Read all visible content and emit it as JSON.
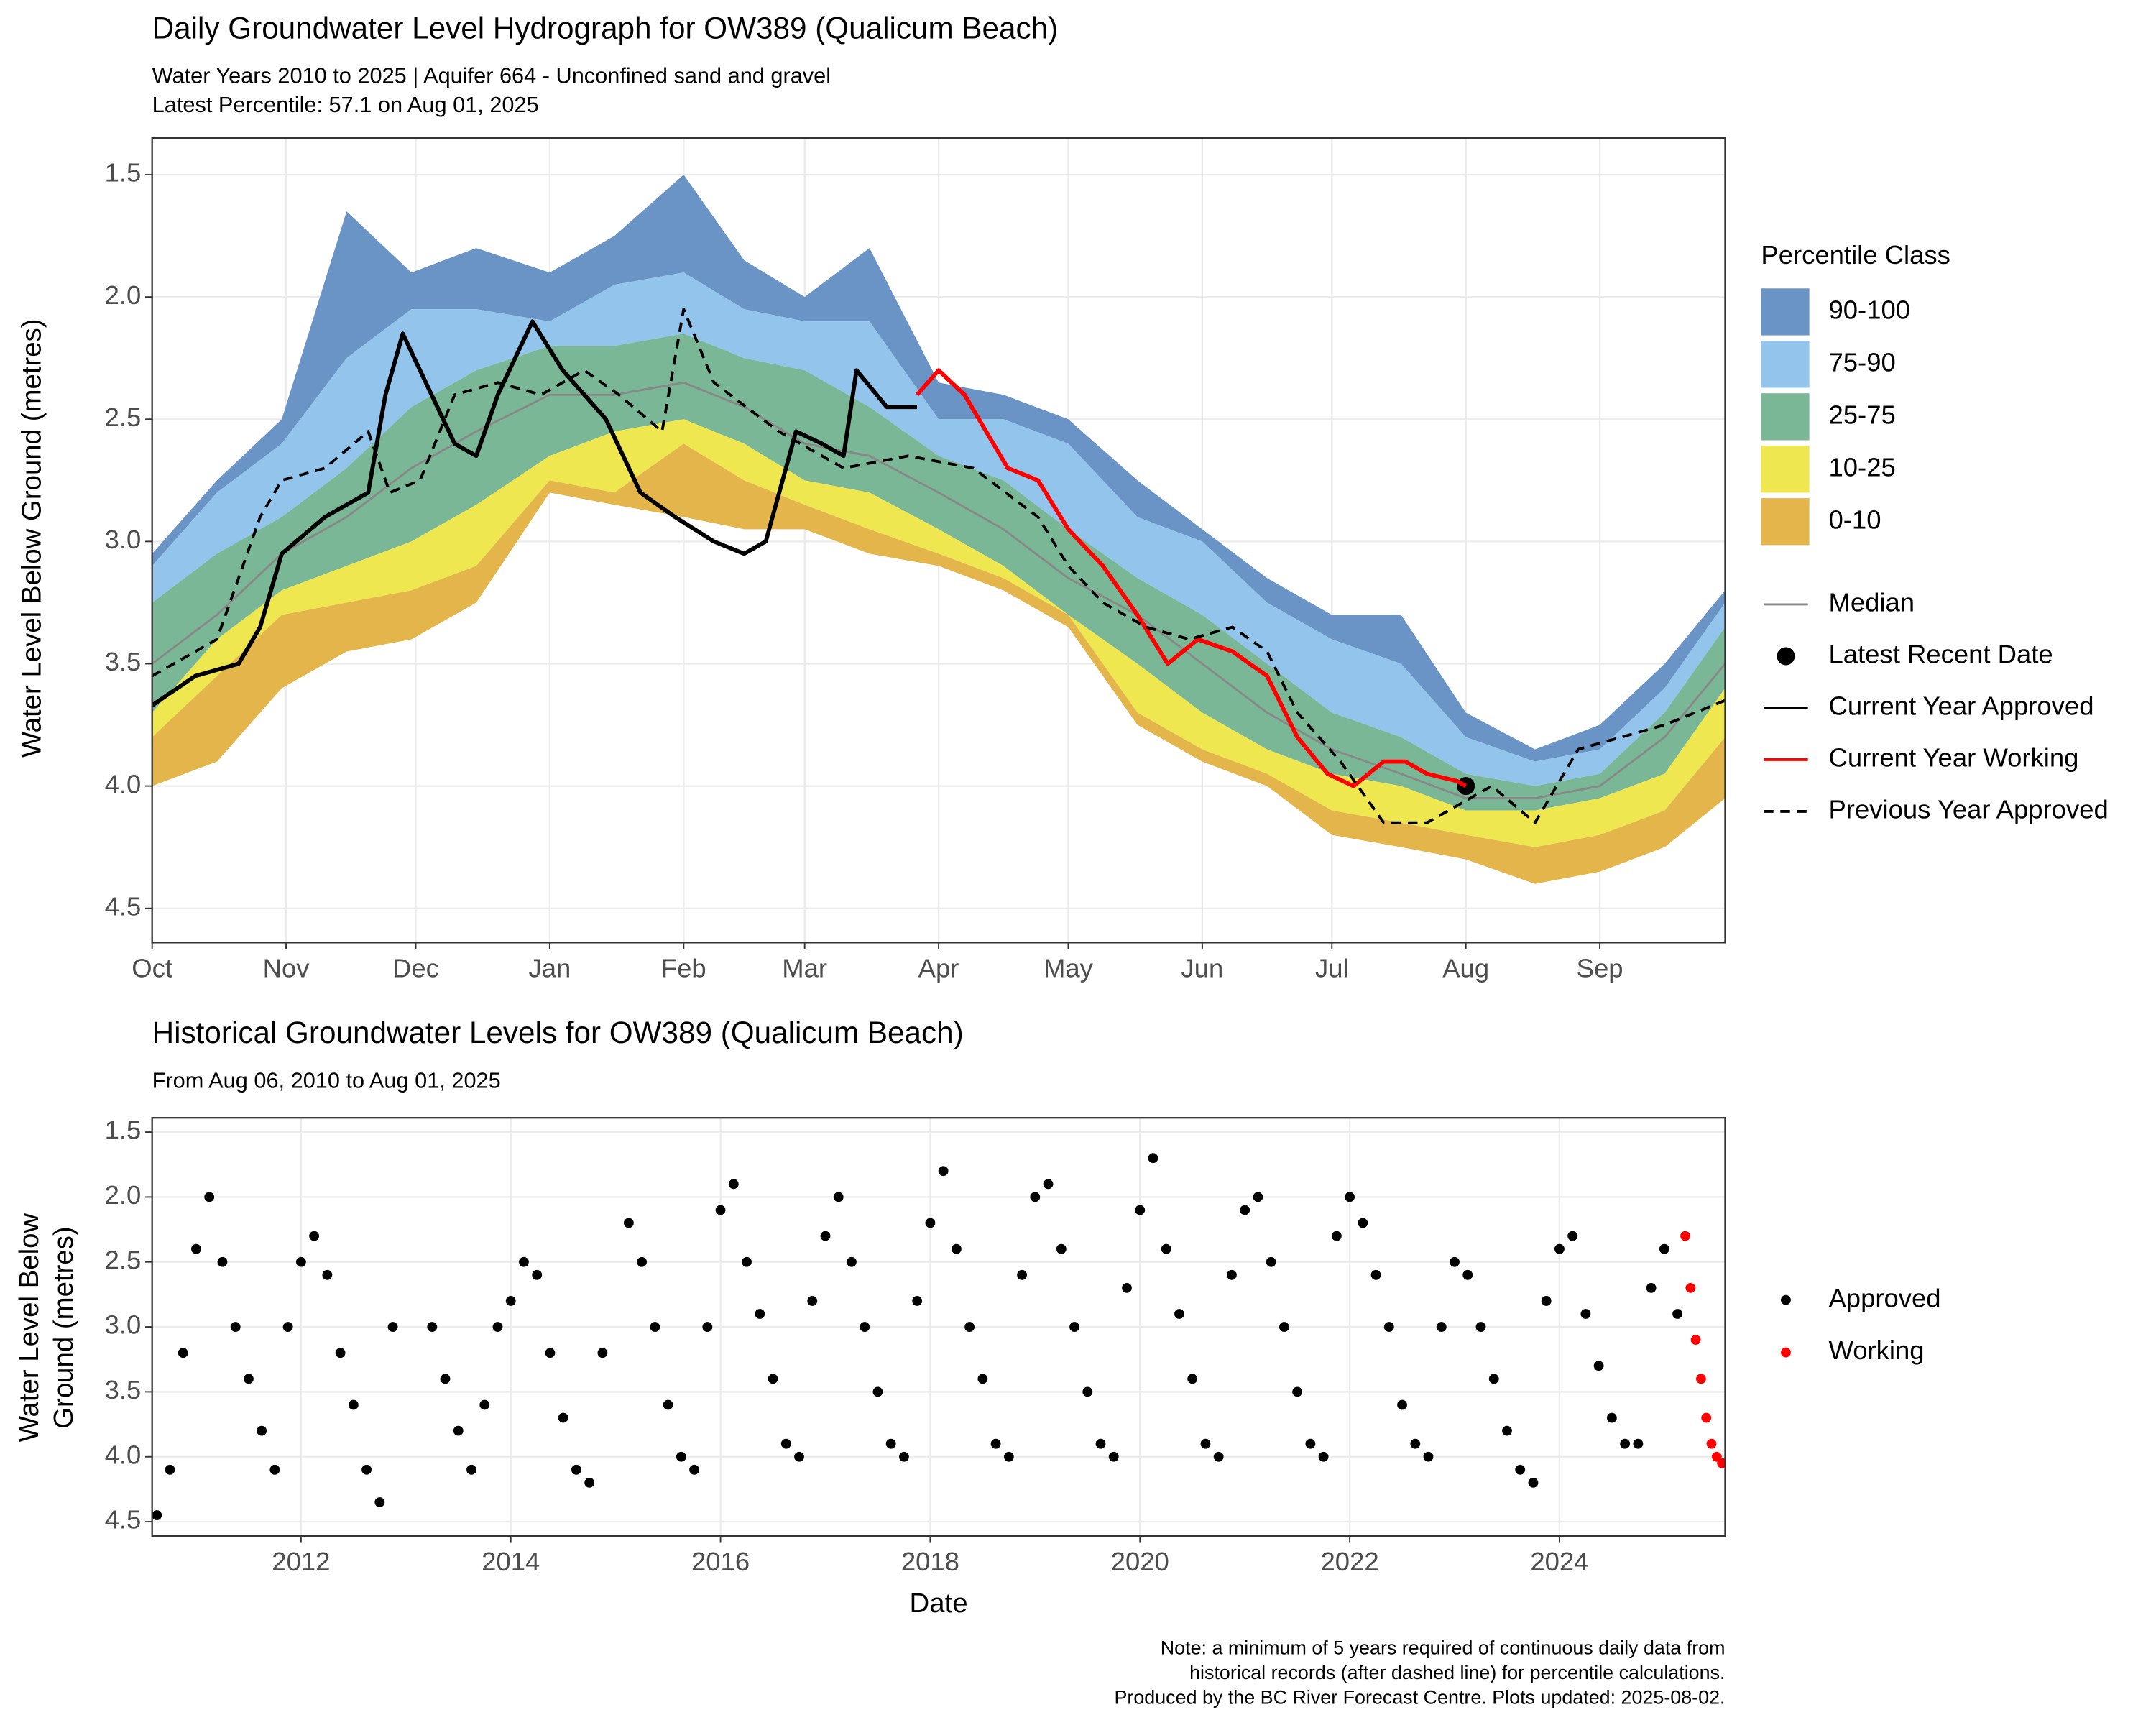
{
  "chart_data": [
    {
      "type": "area",
      "title": "Daily Groundwater Level Hydrograph for OW389 (Qualicum Beach)",
      "subtitle": [
        "Water Years 2010 to 2025 | Aquifer 664 - Unconfined sand and gravel",
        "Latest Percentile: 57.1 on Aug 01, 2025"
      ],
      "ylabel": "Water Level Below Ground (metres)",
      "legend_title": "Percentile Class",
      "legend": "right",
      "grid": true,
      "xlim": [
        0,
        364
      ],
      "xticks": [
        {
          "value": 0,
          "label": "Oct"
        },
        {
          "value": 31,
          "label": "Nov"
        },
        {
          "value": 61,
          "label": "Dec"
        },
        {
          "value": 92,
          "label": "Jan"
        },
        {
          "value": 123,
          "label": "Feb"
        },
        {
          "value": 151,
          "label": "Mar"
        },
        {
          "value": 182,
          "label": "Apr"
        },
        {
          "value": 212,
          "label": "May"
        },
        {
          "value": 243,
          "label": "Jun"
        },
        {
          "value": 273,
          "label": "Jul"
        },
        {
          "value": 304,
          "label": "Aug"
        },
        {
          "value": 335,
          "label": "Sep"
        }
      ],
      "ylim": [
        4.64,
        1.35
      ],
      "yticks": [
        1.5,
        {
          "value": 2,
          "label": "2.0"
        },
        2.5,
        {
          "value": 3,
          "label": "3.0"
        },
        3.5,
        {
          "value": 4,
          "label": "4.0"
        },
        4.5
      ],
      "x": [
        0,
        15,
        30,
        45,
        60,
        75,
        92,
        107,
        123,
        137,
        151,
        166,
        182,
        197,
        212,
        228,
        243,
        258,
        273,
        289,
        304,
        320,
        335,
        350,
        364
      ],
      "series": [
        {
          "name": "90-100",
          "color": "#6a94c6",
          "style": "band",
          "values": [
            3.05,
            2.75,
            2.5,
            1.65,
            1.9,
            1.8,
            1.9,
            1.75,
            1.5,
            1.85,
            2.0,
            1.8,
            2.35,
            2.4,
            2.5,
            2.75,
            2.95,
            3.15,
            3.3,
            3.3,
            3.7,
            3.85,
            3.75,
            3.5,
            3.2
          ]
        },
        {
          "name": "75-90",
          "color": "#93c4ec",
          "style": "band",
          "values": [
            3.1,
            2.8,
            2.6,
            2.25,
            2.05,
            2.05,
            2.1,
            1.95,
            1.9,
            2.05,
            2.1,
            2.1,
            2.5,
            2.5,
            2.6,
            2.9,
            3.0,
            3.25,
            3.4,
            3.5,
            3.8,
            3.9,
            3.85,
            3.6,
            3.25
          ]
        },
        {
          "name": "25-75",
          "color": "#7ab796",
          "style": "band",
          "values": [
            3.25,
            3.05,
            2.9,
            2.7,
            2.45,
            2.3,
            2.2,
            2.2,
            2.15,
            2.25,
            2.3,
            2.45,
            2.65,
            2.75,
            2.95,
            3.15,
            3.3,
            3.5,
            3.7,
            3.8,
            3.95,
            4.0,
            3.95,
            3.7,
            3.35
          ]
        },
        {
          "name": "10-25",
          "color": "#efe74f",
          "style": "band",
          "values": [
            3.7,
            3.4,
            3.2,
            3.1,
            3.0,
            2.85,
            2.65,
            2.55,
            2.5,
            2.6,
            2.75,
            2.8,
            2.95,
            3.1,
            3.3,
            3.5,
            3.7,
            3.85,
            3.95,
            4.0,
            4.1,
            4.1,
            4.05,
            3.95,
            3.6
          ]
        },
        {
          "name": "0-10",
          "color": "#e3b54b",
          "style": "band",
          "values": [
            3.8,
            3.55,
            3.3,
            3.25,
            3.2,
            3.1,
            2.75,
            2.8,
            2.6,
            2.75,
            2.85,
            2.95,
            3.05,
            3.15,
            3.3,
            3.7,
            3.85,
            3.95,
            4.1,
            4.15,
            4.2,
            4.25,
            4.2,
            4.1,
            3.8
          ],
          "lower": [
            4.0,
            3.9,
            3.6,
            3.45,
            3.4,
            3.25,
            2.8,
            2.85,
            2.9,
            2.95,
            2.95,
            3.05,
            3.1,
            3.2,
            3.35,
            3.75,
            3.9,
            4.0,
            4.2,
            4.25,
            4.3,
            4.4,
            4.35,
            4.25,
            4.05
          ]
        },
        {
          "name": "Median",
          "color": "#888888",
          "style": "line",
          "x": [
            0,
            15,
            30,
            45,
            60,
            75,
            92,
            107,
            123,
            137,
            151,
            166,
            182,
            197,
            212,
            228,
            243,
            258,
            273,
            289,
            304,
            320,
            335,
            350,
            364
          ],
          "values": [
            3.5,
            3.3,
            3.05,
            2.9,
            2.7,
            2.55,
            2.4,
            2.4,
            2.35,
            2.45,
            2.6,
            2.65,
            2.8,
            2.95,
            3.15,
            3.3,
            3.5,
            3.7,
            3.85,
            3.95,
            4.05,
            4.05,
            4.0,
            3.8,
            3.5
          ]
        },
        {
          "name": "Latest Recent Date",
          "color": "#000000",
          "style": "point",
          "x": [
            304
          ],
          "values": [
            4.0
          ]
        },
        {
          "name": "Current Year Approved",
          "color": "#000000",
          "style": "line",
          "x": [
            0,
            10,
            20,
            25,
            30,
            40,
            50,
            54,
            58,
            62,
            70,
            75,
            80,
            88,
            95,
            105,
            113,
            121,
            130,
            137,
            142,
            149,
            155,
            160,
            163,
            170,
            177
          ],
          "values": [
            3.67,
            3.55,
            3.5,
            3.35,
            3.05,
            2.9,
            2.8,
            2.4,
            2.15,
            2.3,
            2.6,
            2.65,
            2.4,
            2.1,
            2.3,
            2.5,
            2.8,
            2.9,
            3.0,
            3.05,
            3.0,
            2.55,
            2.6,
            2.65,
            2.3,
            2.45,
            2.45
          ]
        },
        {
          "name": "Current Year Working",
          "color": "#ff0000",
          "style": "line",
          "x": [
            177,
            182,
            188,
            193,
            198,
            205,
            212,
            220,
            228,
            235,
            242,
            250,
            258,
            265,
            272,
            278,
            285,
            290,
            295,
            302,
            304
          ],
          "values": [
            2.4,
            2.3,
            2.4,
            2.55,
            2.7,
            2.75,
            2.95,
            3.1,
            3.3,
            3.5,
            3.4,
            3.45,
            3.55,
            3.8,
            3.95,
            4.0,
            3.9,
            3.9,
            3.95,
            3.98,
            4.0
          ]
        },
        {
          "name": "Previous Year Approved",
          "color": "#000000",
          "style": "dashed",
          "x": [
            0,
            15,
            25,
            30,
            40,
            50,
            55,
            62,
            70,
            80,
            90,
            100,
            108,
            118,
            123,
            130,
            145,
            160,
            175,
            190,
            205,
            212,
            220,
            230,
            240,
            250,
            258,
            265,
            275,
            285,
            295,
            300,
            310,
            320,
            330,
            340,
            350,
            364
          ],
          "values": [
            3.55,
            3.4,
            2.9,
            2.75,
            2.7,
            2.55,
            2.8,
            2.75,
            2.4,
            2.35,
            2.4,
            2.3,
            2.4,
            2.55,
            2.05,
            2.35,
            2.55,
            2.7,
            2.65,
            2.7,
            2.9,
            3.1,
            3.25,
            3.35,
            3.4,
            3.35,
            3.45,
            3.7,
            3.9,
            4.15,
            4.15,
            4.1,
            4.0,
            4.15,
            3.85,
            3.8,
            3.75,
            3.65
          ]
        }
      ]
    },
    {
      "type": "scatter",
      "title": "Historical Groundwater Levels for OW389 (Qualicum Beach)",
      "subtitle": "From Aug 06, 2010 to Aug 01, 2025",
      "xlabel": "Date",
      "ylabel": [
        "Water Level Below",
        "Ground (metres)"
      ],
      "legend": "right",
      "grid": true,
      "xlim": [
        2010.58,
        2025.58
      ],
      "xticks": [
        2012,
        2014,
        2016,
        2018,
        2020,
        2022,
        2024
      ],
      "ylim": [
        4.61,
        1.39
      ],
      "yticks": [
        1.5,
        {
          "value": 2,
          "label": "2.0"
        },
        2.5,
        {
          "value": 3,
          "label": "3.0"
        },
        3.5,
        {
          "value": 4,
          "label": "4.0"
        },
        4.5
      ],
      "series": [
        {
          "name": "Approved",
          "color": "#000000",
          "x": [
            2010.625,
            2010.75,
            2010.875,
            2011.0,
            2011.125,
            2011.25,
            2011.375,
            2011.5,
            2011.625,
            2011.75,
            2011.875,
            2012.0,
            2012.125,
            2012.25,
            2012.375,
            2012.5,
            2012.625,
            2012.75,
            2012.875,
            2013.25,
            2013.375,
            2013.5,
            2013.625,
            2013.75,
            2013.875,
            2014.0,
            2014.125,
            2014.25,
            2014.375,
            2014.5,
            2014.625,
            2014.75,
            2014.875,
            2015.125,
            2015.25,
            2015.375,
            2015.5,
            2015.625,
            2015.75,
            2015.875,
            2016.0,
            2016.125,
            2016.25,
            2016.375,
            2016.5,
            2016.625,
            2016.75,
            2016.875,
            2017.0,
            2017.125,
            2017.25,
            2017.375,
            2017.5,
            2017.625,
            2017.75,
            2017.875,
            2018.0,
            2018.125,
            2018.25,
            2018.375,
            2018.5,
            2018.625,
            2018.75,
            2018.875,
            2019.0,
            2019.125,
            2019.25,
            2019.375,
            2019.5,
            2019.625,
            2019.75,
            2019.875,
            2020.0,
            2020.125,
            2020.25,
            2020.375,
            2020.5,
            2020.625,
            2020.75,
            2020.875,
            2021.0,
            2021.125,
            2021.25,
            2021.375,
            2021.5,
            2021.625,
            2021.75,
            2021.875,
            2022.0,
            2022.125,
            2022.25,
            2022.375,
            2022.5,
            2022.625,
            2022.75,
            2022.875,
            2023.0,
            2023.125,
            2023.25,
            2023.375,
            2023.5,
            2023.625,
            2023.75,
            2023.875,
            2024.0,
            2024.125,
            2024.25,
            2024.375,
            2024.5,
            2024.625,
            2024.75,
            2024.875,
            2025.0,
            2025.125
          ],
          "values": [
            4.45,
            4.1,
            3.2,
            2.4,
            2.0,
            2.5,
            3.0,
            3.4,
            3.8,
            4.1,
            3.0,
            2.5,
            2.3,
            2.6,
            3.2,
            3.6,
            4.1,
            4.35,
            3.0,
            3.0,
            3.4,
            3.8,
            4.1,
            3.6,
            3.0,
            2.8,
            2.5,
            2.6,
            3.2,
            3.7,
            4.1,
            4.2,
            3.2,
            2.2,
            2.5,
            3.0,
            3.6,
            4.0,
            4.1,
            3.0,
            2.1,
            1.9,
            2.5,
            2.9,
            3.4,
            3.9,
            4.0,
            2.8,
            2.3,
            2.0,
            2.5,
            3.0,
            3.5,
            3.9,
            4.0,
            2.8,
            2.2,
            1.8,
            2.4,
            3.0,
            3.4,
            3.9,
            4.0,
            2.6,
            2.0,
            1.9,
            2.4,
            3.0,
            3.5,
            3.9,
            4.0,
            2.7,
            2.1,
            1.7,
            2.4,
            2.9,
            3.4,
            3.9,
            4.0,
            2.6,
            2.1,
            2.0,
            2.5,
            3.0,
            3.5,
            3.9,
            4.0,
            2.3,
            2.0,
            2.2,
            2.6,
            3.0,
            3.6,
            3.9,
            4.0,
            3.0,
            2.5,
            2.6,
            3.0,
            3.4,
            3.8,
            4.1,
            4.2,
            2.8,
            2.4,
            2.3,
            2.9,
            3.3,
            3.7,
            3.9,
            3.9,
            2.7,
            2.4,
            2.9
          ]
        },
        {
          "name": "Working",
          "color": "#ff0000",
          "x": [
            2025.2,
            2025.25,
            2025.3,
            2025.35,
            2025.4,
            2025.45,
            2025.5,
            2025.55,
            2025.58
          ],
          "values": [
            2.3,
            2.7,
            3.1,
            3.4,
            3.7,
            3.9,
            4.0,
            4.05,
            4.05
          ]
        }
      ],
      "note": [
        "Note: a minimum of 5 years required of continuous daily data from",
        "historical records (after dashed line) for percentile calculations.",
        "Produced by the BC River Forecast Centre. Plots updated: 2025-08-02."
      ]
    }
  ]
}
